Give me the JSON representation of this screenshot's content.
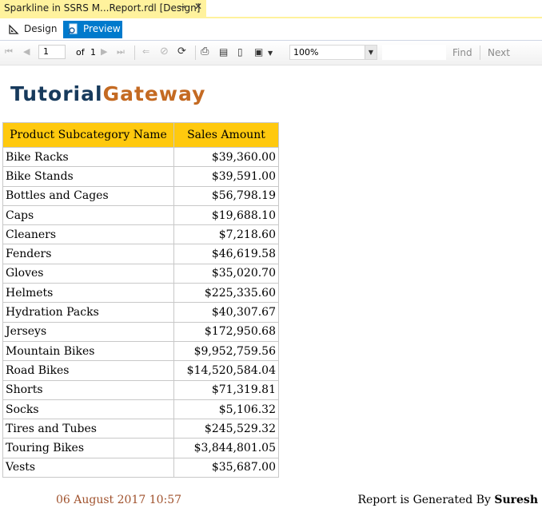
{
  "window": {
    "doc_tab_title": "Sparkline in SSRS M...Report.rdl [Design]",
    "pin_icon": "pin-icon",
    "close_icon": "close-icon"
  },
  "view_tabs": {
    "design_label": "Design",
    "preview_label": "Preview",
    "active": "Preview",
    "active_color": "#007acc"
  },
  "toolbar": {
    "current_page": "1",
    "of_label": "of",
    "total_pages": "1",
    "zoom": "100%",
    "find_label": "Find",
    "next_label": "Next"
  },
  "report": {
    "logo_part1": "Tutorial",
    "logo_part2": "Gateway",
    "logo_colors": {
      "part1": "#173a5c",
      "part2": "#c46a22"
    },
    "header_color": "#ffc90e",
    "columns": [
      "Product Subcategory Name",
      "Sales Amount"
    ],
    "rows": [
      [
        "Bike Racks",
        "$39,360.00"
      ],
      [
        "Bike Stands",
        "$39,591.00"
      ],
      [
        "Bottles and Cages",
        "$56,798.19"
      ],
      [
        "Caps",
        "$19,688.10"
      ],
      [
        "Cleaners",
        "$7,218.60"
      ],
      [
        "Fenders",
        "$46,619.58"
      ],
      [
        "Gloves",
        "$35,020.70"
      ],
      [
        "Helmets",
        "$225,335.60"
      ],
      [
        "Hydration Packs",
        "$40,307.67"
      ],
      [
        "Jerseys",
        "$172,950.68"
      ],
      [
        "Mountain Bikes",
        "$9,952,759.56"
      ],
      [
        "Road Bikes",
        "$14,520,584.04"
      ],
      [
        "Shorts",
        "$71,319.81"
      ],
      [
        "Socks",
        "$5,106.32"
      ],
      [
        "Tires and Tubes",
        "$245,529.32"
      ],
      [
        "Touring Bikes",
        "$3,844,801.05"
      ],
      [
        "Vests",
        "$35,687.00"
      ]
    ],
    "footer_date": "06 August 2017 10:57",
    "footer_generated_prefix": "Report is Generated By",
    "footer_author": "Suresh"
  }
}
